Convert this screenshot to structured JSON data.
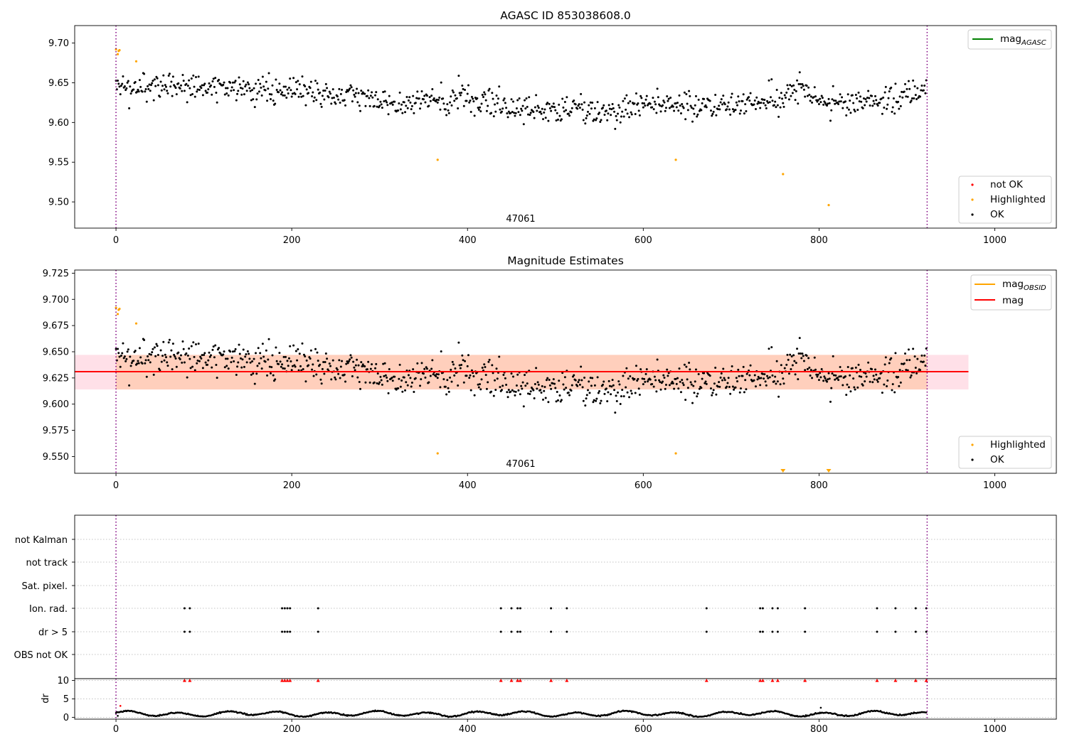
{
  "figure": {
    "width": 1500,
    "height": 1050
  },
  "colors": {
    "ok": "#000000",
    "highlighted": "#ffa500",
    "not_ok": "#ff0000",
    "mag_agasc": "#008000",
    "mag_obsid": "#ffa500",
    "mag": "#ff0000",
    "obs_bound": "#800080",
    "band_inner": "#ffcbb0",
    "band_outer": "#ffd6e0"
  },
  "chart_data": [
    {
      "id": "top",
      "type": "scatter",
      "title": "AGASC ID 853038608.0",
      "xlim": [
        -47,
        1070
      ],
      "ylim": [
        9.467,
        9.722
      ],
      "xticks": [
        0,
        200,
        400,
        600,
        800,
        1000
      ],
      "xtick_labels": [
        "0",
        "200",
        "400",
        "600",
        "800",
        "1000"
      ],
      "yticks": [
        9.5,
        9.55,
        9.6,
        9.65,
        9.7
      ],
      "ytick_labels": [
        "9.50",
        "9.55",
        "9.60",
        "9.65",
        "9.70"
      ],
      "obs_bounds": [
        0,
        923
      ],
      "obsid_label": {
        "text": "47061",
        "x": 462
      },
      "highlighted": {
        "x": [
          0,
          2,
          3,
          4,
          23,
          366,
          637,
          759,
          811
        ],
        "y": [
          9.692,
          9.686,
          9.69,
          9.691,
          9.677,
          9.553,
          9.553,
          9.535,
          9.496
        ]
      },
      "legend_upper": {
        "position": "upper right",
        "entries": [
          {
            "label": "mag",
            "sub": "AGASC",
            "kind": "line",
            "color": "#008000"
          }
        ]
      },
      "legend_lower": {
        "position": "lower right",
        "entries": [
          {
            "label": "not OK",
            "kind": "marker",
            "color": "#ff0000"
          },
          {
            "label": "Highlighted",
            "kind": "marker",
            "color": "#ffa500"
          },
          {
            "label": "OK",
            "kind": "marker",
            "color": "#000000"
          }
        ]
      },
      "ok_series": {
        "n_points": 923,
        "x_range": [
          0,
          923
        ],
        "base": 9.632,
        "trend": [
          [
            0,
            9.64
          ],
          [
            60,
            9.648
          ],
          [
            150,
            9.641
          ],
          [
            250,
            9.636
          ],
          [
            330,
            9.626
          ],
          [
            420,
            9.628
          ],
          [
            470,
            9.617
          ],
          [
            560,
            9.614
          ],
          [
            610,
            9.624
          ],
          [
            660,
            9.62
          ],
          [
            760,
            9.628
          ],
          [
            780,
            9.65
          ],
          [
            800,
            9.624
          ],
          [
            860,
            9.627
          ],
          [
            923,
            9.64
          ]
        ],
        "scatter": 0.012
      }
    },
    {
      "id": "middle",
      "type": "scatter",
      "title": "Magnitude Estimates",
      "xlim": [
        -47,
        1070
      ],
      "ylim": [
        9.534,
        9.728
      ],
      "xticks": [
        0,
        200,
        400,
        600,
        800,
        1000
      ],
      "xtick_labels": [
        "0",
        "200",
        "400",
        "600",
        "800",
        "1000"
      ],
      "yticks": [
        9.55,
        9.575,
        9.6,
        9.625,
        9.65,
        9.675,
        9.7,
        9.725
      ],
      "ytick_labels": [
        "9.550",
        "9.575",
        "9.600",
        "9.625",
        "9.650",
        "9.675",
        "9.700",
        "9.725"
      ],
      "obs_bounds": [
        0,
        923
      ],
      "obsid_label": {
        "text": "47061",
        "x": 462
      },
      "mag_line": {
        "x": [
          -47,
          970
        ],
        "y": 9.631
      },
      "mag_band": {
        "x": [
          -47,
          970
        ],
        "y": [
          9.614,
          9.647
        ]
      },
      "obsid_band": {
        "x": [
          0,
          923
        ],
        "y": [
          9.614,
          9.647
        ]
      },
      "highlighted": {
        "x": [
          0,
          2,
          3,
          4,
          23,
          366,
          637
        ],
        "y": [
          9.692,
          9.686,
          9.69,
          9.691,
          9.677,
          9.553,
          9.553
        ]
      },
      "clipped_markers": {
        "x": [
          759,
          811
        ],
        "marker": "down-triangle"
      },
      "legend_upper": {
        "position": "upper right",
        "entries": [
          {
            "label": "mag",
            "sub": "OBSID",
            "kind": "line",
            "color": "#ffa500"
          },
          {
            "label": "mag",
            "kind": "line",
            "color": "#ff0000"
          }
        ]
      },
      "legend_lower": {
        "position": "lower right",
        "entries": [
          {
            "label": "Highlighted",
            "kind": "marker",
            "color": "#ffa500"
          },
          {
            "label": "OK",
            "kind": "marker",
            "color": "#000000"
          }
        ]
      }
    },
    {
      "id": "flags",
      "type": "scatter",
      "xlim": [
        -47,
        1070
      ],
      "categories": [
        "not Kalman",
        "not track",
        "Sat. pixel.",
        "Ion. rad.",
        "dr > 5",
        "OBS not OK"
      ],
      "flag_x": [
        78,
        84,
        189,
        192,
        195,
        198,
        230,
        438,
        450,
        457,
        460,
        495,
        513,
        672,
        733,
        736,
        747,
        753,
        784,
        866,
        887,
        910,
        922
      ],
      "flagged_rows": [
        "Ion. rad.",
        "dr > 5"
      ],
      "obs_bounds": [
        0,
        923
      ]
    },
    {
      "id": "dr",
      "type": "scatter",
      "xlim": [
        -47,
        1070
      ],
      "ylim": [
        -0.5,
        10.5
      ],
      "ylabel": "dr",
      "yticks": [
        0,
        5,
        10
      ],
      "ytick_labels": [
        "0",
        "5",
        "10"
      ],
      "xticks": [
        0,
        200,
        400,
        600,
        800,
        1000
      ],
      "xtick_labels": [
        "0",
        "200",
        "400",
        "600",
        "800",
        "1000"
      ],
      "obs_bounds": [
        0,
        923
      ],
      "outlier_markers": {
        "x": [
          78,
          84,
          189,
          192,
          195,
          198,
          230,
          438,
          450,
          457,
          460,
          495,
          513,
          672,
          733,
          736,
          747,
          753,
          784,
          866,
          887,
          910,
          922
        ],
        "y": 10,
        "marker": "up-triangle"
      },
      "extra_points": {
        "x": [
          2,
          5,
          802
        ],
        "y": [
          0.4,
          3.1,
          2.6
        ]
      },
      "ok_series": {
        "n_points": 923,
        "x_range": [
          0,
          923
        ],
        "base": 1.0
      }
    }
  ]
}
